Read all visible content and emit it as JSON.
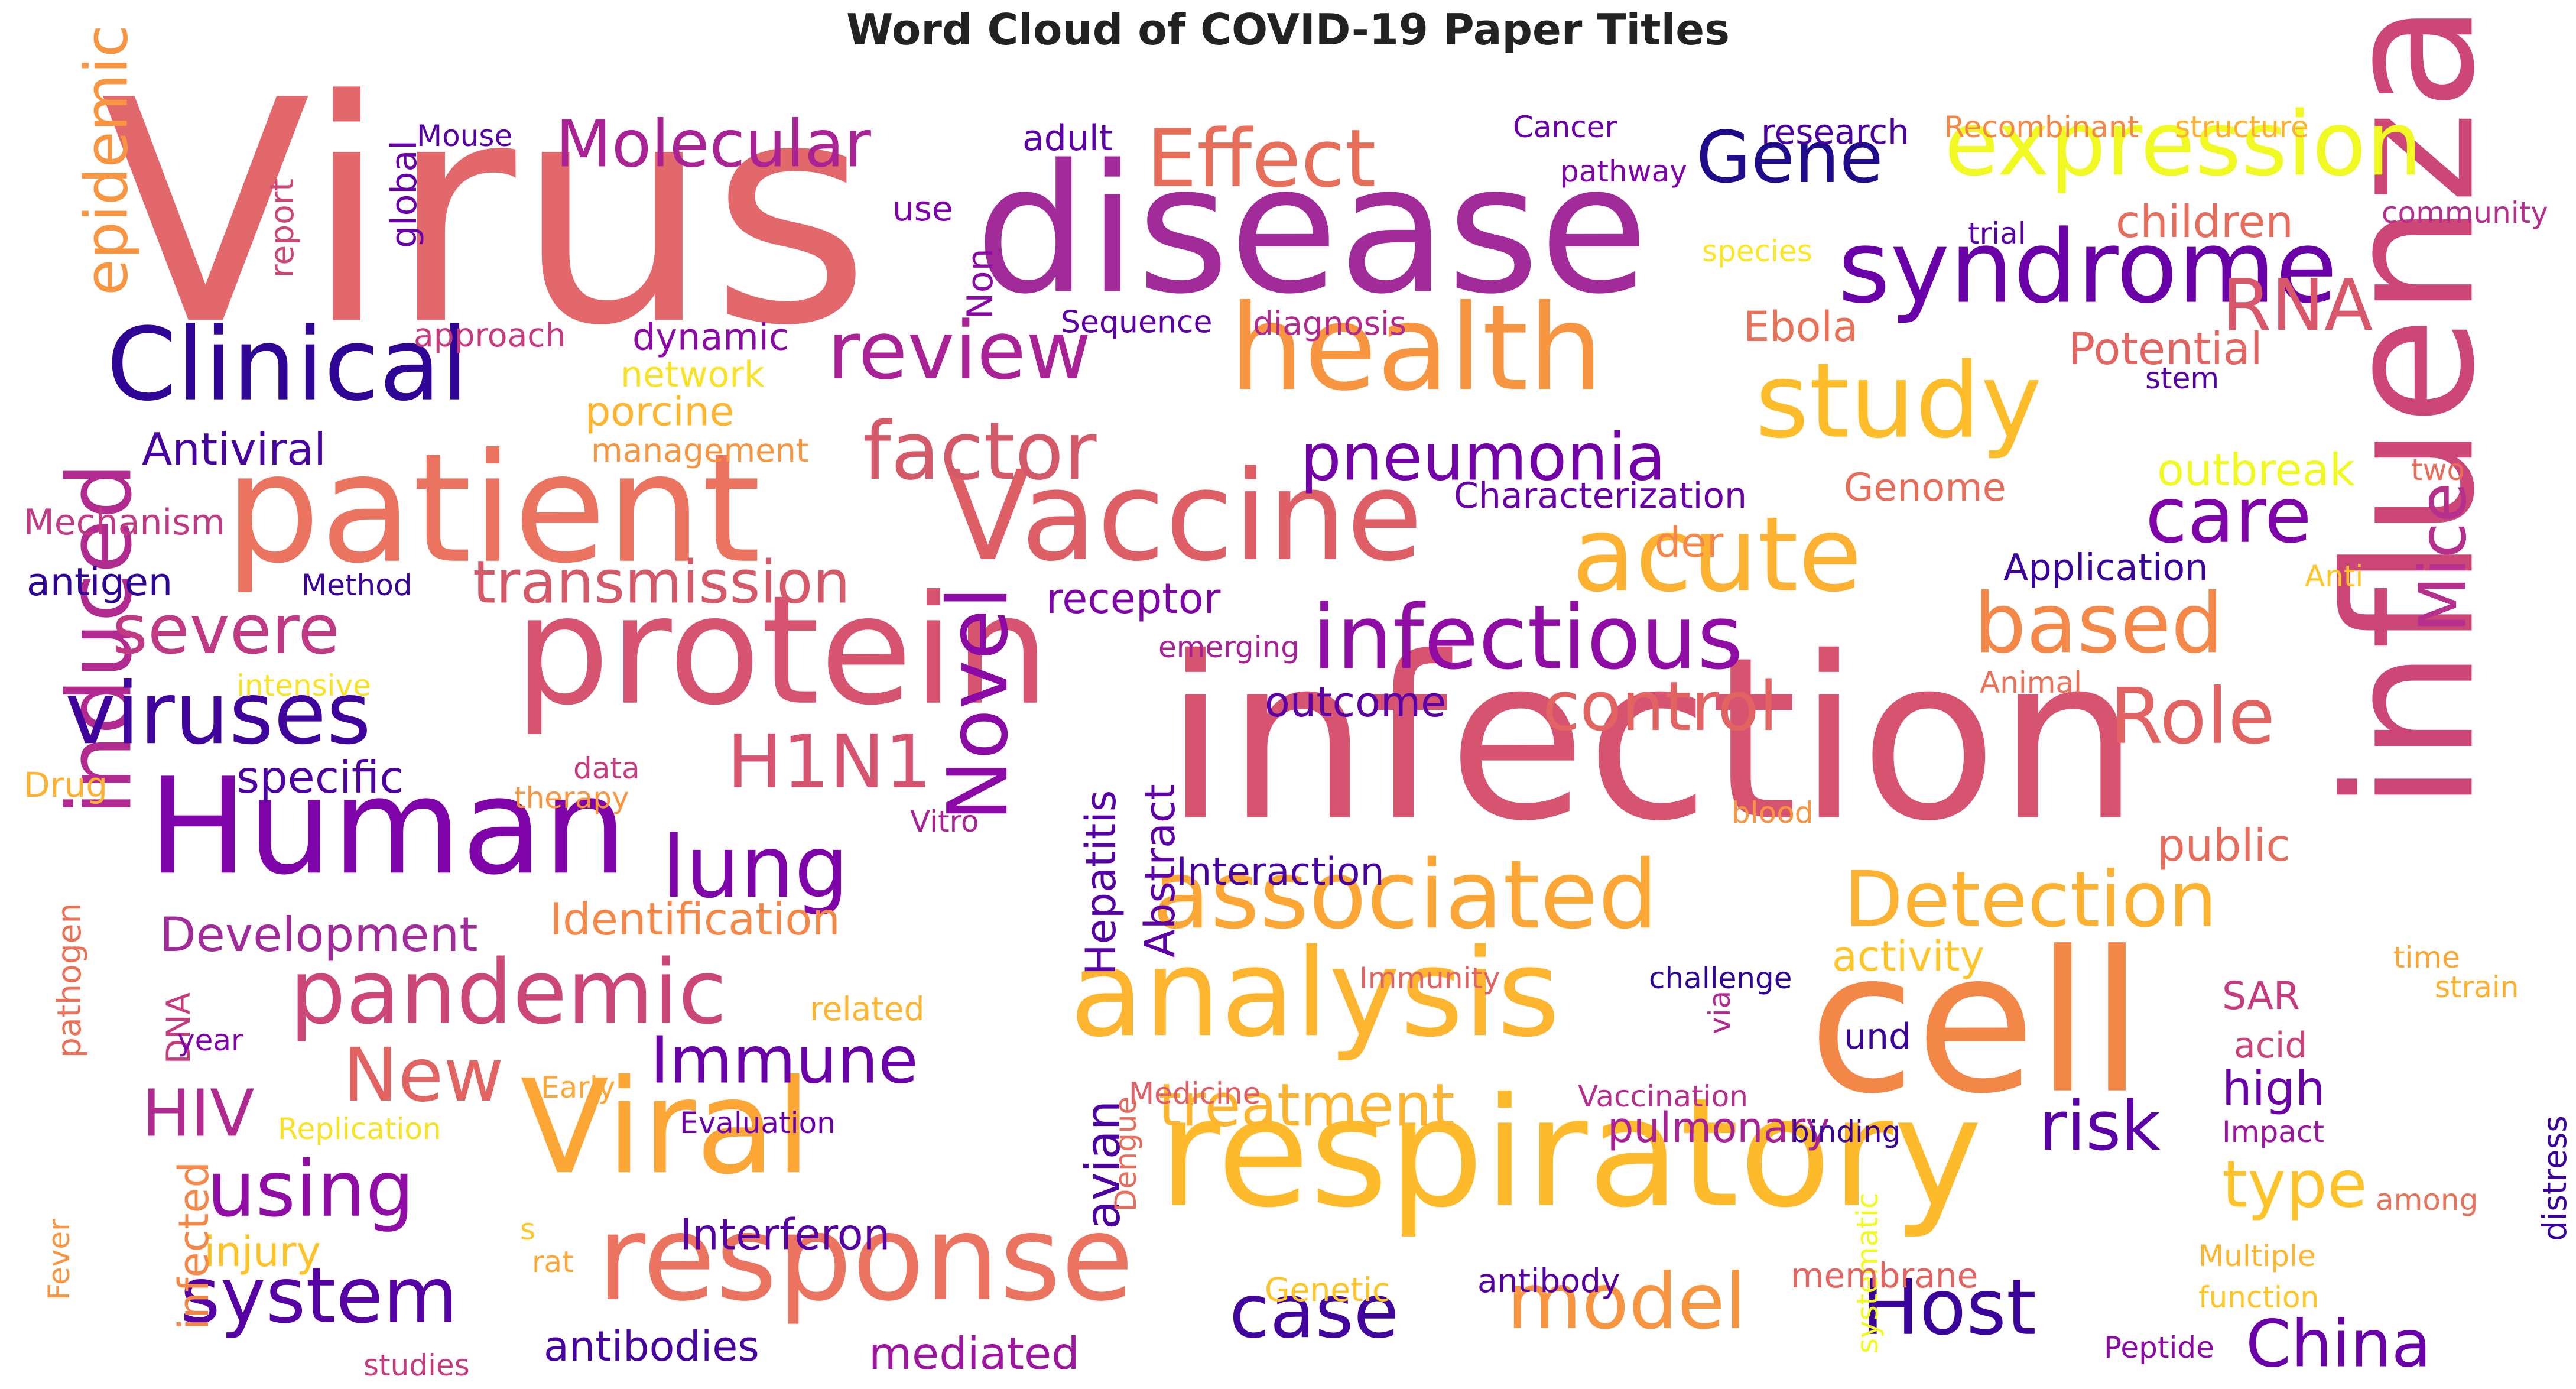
{
  "title": "Word Cloud of COVID-19 Paper Titles",
  "words": [
    {
      "text": "Virus",
      "color": "#e3686c"
    },
    {
      "text": "disease",
      "color": "#a22b9a"
    },
    {
      "text": "infection",
      "color": "#d6546f"
    },
    {
      "text": "influenza",
      "color": "#cc4778"
    },
    {
      "text": "patient",
      "color": "#ea7460"
    },
    {
      "text": "protein",
      "color": "#d6546f"
    },
    {
      "text": "cell",
      "color": "#f38748"
    },
    {
      "text": "respiratory",
      "color": "#fdbb2b"
    },
    {
      "text": "Vaccine",
      "color": "#de5f65"
    },
    {
      "text": "Human",
      "color": "#7e03a8"
    },
    {
      "text": "analysis",
      "color": "#fdb42f"
    },
    {
      "text": "health",
      "color": "#f89540"
    },
    {
      "text": "Viral",
      "color": "#fca636"
    },
    {
      "text": "response",
      "color": "#ea7460"
    },
    {
      "text": "Clinical",
      "color": "#2f0596"
    },
    {
      "text": "expression",
      "color": "#f0f921"
    },
    {
      "text": "study",
      "color": "#fdbd2a"
    },
    {
      "text": "syndrome",
      "color": "#6a00a8"
    },
    {
      "text": "acute",
      "color": "#fdb130"
    },
    {
      "text": "associated",
      "color": "#fca636"
    },
    {
      "text": "Gene",
      "color": "#1f0c8a"
    },
    {
      "text": "Effect",
      "color": "#e76f5a"
    },
    {
      "text": "infectious",
      "color": "#8f0da4"
    },
    {
      "text": "pandemic",
      "color": "#cc4778"
    },
    {
      "text": "induced",
      "color": "#b12a90"
    },
    {
      "text": "Molecular",
      "color": "#a92395"
    },
    {
      "text": "factor",
      "color": "#d45a6a"
    },
    {
      "text": "review",
      "color": "#a82296"
    },
    {
      "text": "viruses",
      "color": "#3e049c"
    },
    {
      "text": "Novel",
      "color": "#8b0aa5"
    },
    {
      "text": "RNA",
      "color": "#d8576b"
    },
    {
      "text": "based",
      "color": "#f48849"
    },
    {
      "text": "pneumonia",
      "color": "#7201a8"
    },
    {
      "text": "transmission",
      "color": "#d45a6a"
    },
    {
      "text": "using",
      "color": "#8f0da4"
    },
    {
      "text": "system",
      "color": "#5601a4"
    },
    {
      "text": "model",
      "color": "#f89540"
    },
    {
      "text": "Host",
      "color": "#3a049a"
    },
    {
      "text": "treatment",
      "color": "#fdb42f"
    },
    {
      "text": "Detection",
      "color": "#fdb130"
    },
    {
      "text": "care",
      "color": "#7e03a8"
    },
    {
      "text": "Role",
      "color": "#e16462"
    },
    {
      "text": "control",
      "color": "#e16462"
    },
    {
      "text": "lung",
      "color": "#7e03a8"
    },
    {
      "text": "severe",
      "color": "#c03a83"
    },
    {
      "text": "H1N1",
      "color": "#d6546f"
    },
    {
      "text": "New",
      "color": "#e16462"
    },
    {
      "text": "HIV",
      "color": "#b12a90"
    },
    {
      "text": "Immune",
      "color": "#6a00a8"
    },
    {
      "text": "case",
      "color": "#41049d"
    },
    {
      "text": "China",
      "color": "#6a00a8"
    },
    {
      "text": "risk",
      "color": "#5c01a6"
    },
    {
      "text": "type",
      "color": "#fdc328"
    },
    {
      "text": "epidemic",
      "color": "#f89540"
    },
    {
      "text": "Mice",
      "color": "#b52f8c"
    },
    {
      "text": "children",
      "color": "#e66c5c"
    },
    {
      "text": "outbreak",
      "color": "#f0f921"
    },
    {
      "text": "Potential",
      "color": "#e26561"
    },
    {
      "text": "Ebola",
      "color": "#e97158"
    },
    {
      "text": "Genome",
      "color": "#e76f5a"
    },
    {
      "text": "der",
      "color": "#f48849"
    },
    {
      "text": "Application",
      "color": "#3a049a"
    },
    {
      "text": "Characterization",
      "color": "#6a00a8"
    },
    {
      "text": "receptor",
      "color": "#7e03a8"
    },
    {
      "text": "outcome",
      "color": "#5c01a6"
    },
    {
      "text": "Antiviral",
      "color": "#47039f"
    },
    {
      "text": "Development",
      "color": "#a22b9a"
    },
    {
      "text": "specific",
      "color": "#4c02a1"
    },
    {
      "text": "Identification",
      "color": "#f48849"
    },
    {
      "text": "Interaction",
      "color": "#47039f"
    },
    {
      "text": "Hepatitis",
      "color": "#5601a4"
    },
    {
      "text": "Abstract",
      "color": "#5c01a6"
    },
    {
      "text": "avian",
      "color": "#4c02a1"
    },
    {
      "text": "activity",
      "color": "#fdc527"
    },
    {
      "text": "public",
      "color": "#e66c5c"
    },
    {
      "text": "SAR",
      "color": "#c43c7e"
    },
    {
      "text": "acid",
      "color": "#ca457a"
    },
    {
      "text": "high",
      "color": "#6a00a8"
    },
    {
      "text": "und",
      "color": "#3a049a"
    },
    {
      "text": "pulmonary",
      "color": "#a72197"
    },
    {
      "text": "Interferon",
      "color": "#5601a4"
    },
    {
      "text": "antibodies",
      "color": "#47039f"
    },
    {
      "text": "mediated",
      "color": "#9c179e"
    },
    {
      "text": "injury",
      "color": "#fdc328"
    },
    {
      "text": "infected",
      "color": "#f48849"
    },
    {
      "text": "antigen",
      "color": "#2f0596"
    },
    {
      "text": "Mechanism",
      "color": "#c03a83"
    },
    {
      "text": "porcine",
      "color": "#fdb42f"
    },
    {
      "text": "network",
      "color": "#f7e225"
    },
    {
      "text": "management",
      "color": "#f89540"
    },
    {
      "text": "dynamic",
      "color": "#8b0aa5"
    },
    {
      "text": "approach",
      "color": "#c43c7e"
    },
    {
      "text": "global",
      "color": "#6a00a8"
    },
    {
      "text": "report",
      "color": "#cc4778"
    },
    {
      "text": "Non",
      "color": "#8b0aa5"
    },
    {
      "text": "use",
      "color": "#7e03a8"
    },
    {
      "text": "adult",
      "color": "#5c01a6"
    },
    {
      "text": "Mouse",
      "color": "#5601a4"
    },
    {
      "text": "Sequence",
      "color": "#5c01a6"
    },
    {
      "text": "diagnosis",
      "color": "#b12a90"
    },
    {
      "text": "Cancer",
      "color": "#6a00a8"
    },
    {
      "text": "pathway",
      "color": "#7e03a8"
    },
    {
      "text": "research",
      "color": "#4c02a1"
    },
    {
      "text": "Recombinant",
      "color": "#f48849"
    },
    {
      "text": "structure",
      "color": "#fdb130"
    },
    {
      "text": "community",
      "color": "#b52f8c"
    },
    {
      "text": "trial",
      "color": "#5601a4"
    },
    {
      "text": "species",
      "color": "#fde725"
    },
    {
      "text": "stem",
      "color": "#5601a4"
    },
    {
      "text": "two",
      "color": "#e66c5c"
    },
    {
      "text": "Anti",
      "color": "#fdc527"
    },
    {
      "text": "Animal",
      "color": "#e97158"
    },
    {
      "text": "blood",
      "color": "#f89540"
    },
    {
      "text": "emerging",
      "color": "#a72197"
    },
    {
      "text": "intensive",
      "color": "#f7e225"
    },
    {
      "text": "Method",
      "color": "#3a049a"
    },
    {
      "text": "Drug",
      "color": "#fdb130"
    },
    {
      "text": "data",
      "color": "#c43c7e"
    },
    {
      "text": "therapy",
      "color": "#f89540"
    },
    {
      "text": "Vitro",
      "color": "#a92395"
    },
    {
      "text": "pathogen",
      "color": "#e97158"
    },
    {
      "text": "DNA",
      "color": "#c43c7e"
    },
    {
      "text": "year",
      "color": "#7e03a8"
    },
    {
      "text": "Early",
      "color": "#fca636"
    },
    {
      "text": "Replication",
      "color": "#f7e225"
    },
    {
      "text": "Evaluation",
      "color": "#6a00a8"
    },
    {
      "text": "Medicine",
      "color": "#de5f65"
    },
    {
      "text": "Dengue",
      "color": "#e66c5c"
    },
    {
      "text": "related",
      "color": "#fdb42f"
    },
    {
      "text": "Immunity",
      "color": "#e16462"
    },
    {
      "text": "challenge",
      "color": "#2f0596"
    },
    {
      "text": "via",
      "color": "#b12a90"
    },
    {
      "text": "Vaccination",
      "color": "#b52f8c"
    },
    {
      "text": "binding",
      "color": "#3a049a"
    },
    {
      "text": "Impact",
      "color": "#9c179e"
    },
    {
      "text": "time",
      "color": "#fca636"
    },
    {
      "text": "strain",
      "color": "#fdb130"
    },
    {
      "text": "among",
      "color": "#e97158"
    },
    {
      "text": "distress",
      "color": "#3a049a"
    },
    {
      "text": "Multiple",
      "color": "#fdb42f"
    },
    {
      "text": "function",
      "color": "#fdc527"
    },
    {
      "text": "systematic",
      "color": "#f0f921"
    },
    {
      "text": "Peptide",
      "color": "#8b0aa5"
    },
    {
      "text": "membrane",
      "color": "#e26561"
    },
    {
      "text": "antibody",
      "color": "#5601a4"
    },
    {
      "text": "Genetic",
      "color": "#fdc527"
    },
    {
      "text": "s",
      "color": "#fdc527"
    },
    {
      "text": "rat",
      "color": "#fca636"
    },
    {
      "text": "Fever",
      "color": "#f89540"
    },
    {
      "text": "studies",
      "color": "#c43c7e"
    }
  ]
}
